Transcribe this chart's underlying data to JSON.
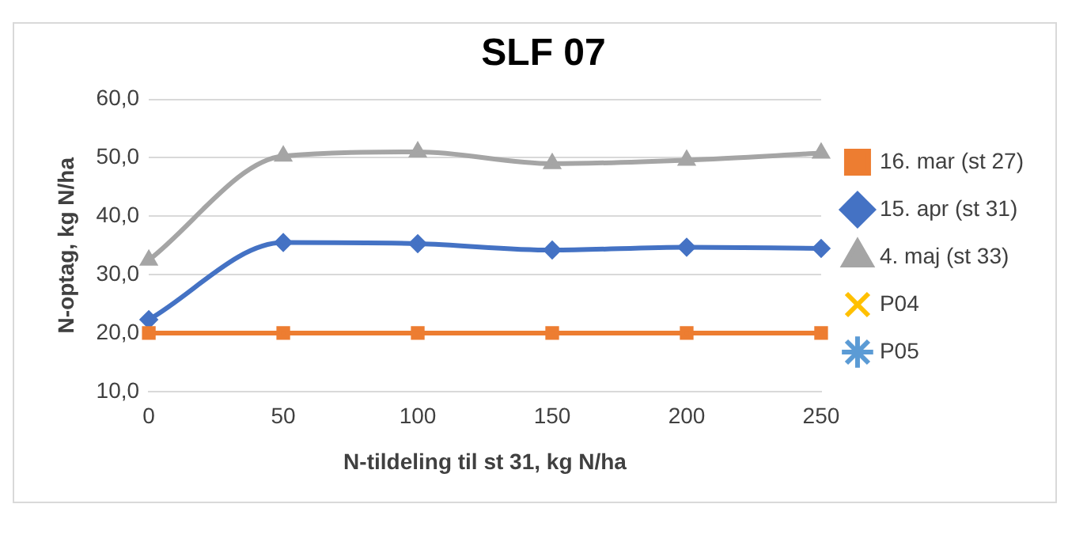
{
  "chart_data": {
    "type": "line",
    "title": "SLF 07",
    "xlabel": "N-tildeling til st 31, kg N/ha",
    "ylabel": "N-optag, kg N/ha",
    "categories": [
      "0",
      "50",
      "100",
      "150",
      "200",
      "250"
    ],
    "series": [
      {
        "name": "16. mar (st 27)",
        "color": "#ed7d31",
        "marker": "square",
        "values": [
          20,
          20,
          20,
          20,
          20,
          20
        ]
      },
      {
        "name": "15. apr (st 31)",
        "color": "#4472c4",
        "marker": "diamond",
        "values": [
          22.3,
          35.5,
          35.3,
          34.2,
          34.7,
          34.5
        ]
      },
      {
        "name": "4. maj (st 33)",
        "color": "#a5a5a5",
        "marker": "triangle",
        "values": [
          32.5,
          50.3,
          51.0,
          49.0,
          49.6,
          50.8
        ]
      },
      {
        "name": "P04",
        "color": "#ffc000",
        "marker": "cross",
        "values": [
          null,
          null,
          null,
          null,
          null,
          null
        ]
      },
      {
        "name": "P05",
        "color": "#5b9bd5",
        "marker": "star",
        "values": [
          null,
          null,
          null,
          null,
          null,
          null
        ]
      }
    ],
    "ylim": [
      10,
      60
    ],
    "yticks": [
      {
        "value": 10,
        "label": "10,0"
      },
      {
        "value": 20,
        "label": "20,0"
      },
      {
        "value": 30,
        "label": "30,0"
      },
      {
        "value": 40,
        "label": "40,0"
      },
      {
        "value": 50,
        "label": "50,0"
      },
      {
        "value": 60,
        "label": "60,0"
      }
    ],
    "grid": "y",
    "legend": "right"
  }
}
